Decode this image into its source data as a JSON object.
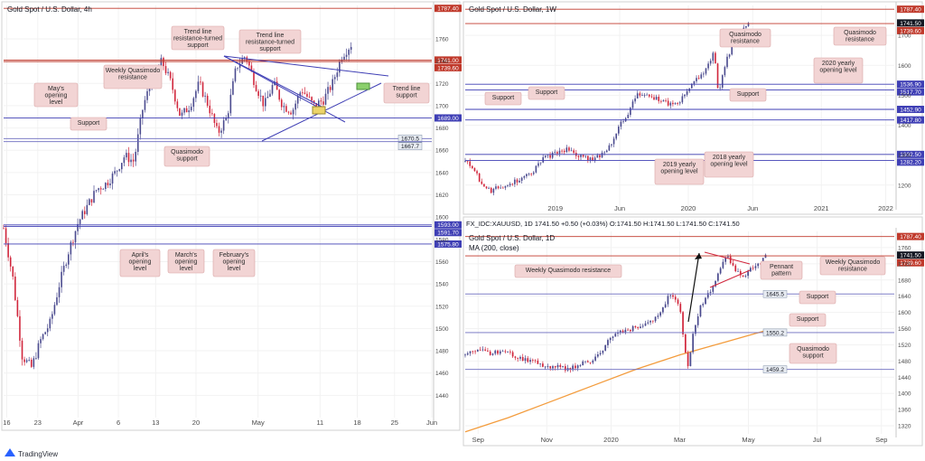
{
  "app": {
    "brand": "TradingView"
  },
  "colors": {
    "up": "#4a4a8e",
    "down": "#d1263c",
    "ma": "#f39c3d",
    "support": "#3f3fb5",
    "resistance": "#c0392b",
    "note_fill": "#f2d4d4",
    "note_stroke": "#d9a3a3",
    "grid": "#f2f2f2",
    "axis": "#c9c9c9",
    "green_box": "#8bd06c",
    "yellow_box": "#ecd46a"
  },
  "chart_data": [
    {
      "id": "tl",
      "type": "candlestick",
      "title": "Gold Spot / U.S. Dollar, 4h",
      "ylim": [
        1420,
        1790
      ],
      "y_ticks": [
        1440,
        1460,
        1480,
        1500,
        1520,
        1540,
        1560,
        1580,
        1600,
        1620,
        1640,
        1660,
        1680,
        1700,
        1720,
        1740,
        1760
      ],
      "x_ticks": [
        {
          "label": "16",
          "t": 0.01
        },
        {
          "label": "23",
          "t": 0.11
        },
        {
          "label": "Apr",
          "t": 0.24
        },
        {
          "label": "6",
          "t": 0.37
        },
        {
          "label": "13",
          "t": 0.49
        },
        {
          "label": "20",
          "t": 0.62
        },
        {
          "label": "May",
          "t": 0.82
        },
        {
          "label": "11",
          "t": 1.02
        },
        {
          "label": "18",
          "t": 1.14
        },
        {
          "label": "25",
          "t": 1.26
        },
        {
          "label": "Jun",
          "t": 1.38
        }
      ],
      "price_path": [
        [
          0,
          1590
        ],
        [
          0.03,
          1545
        ],
        [
          0.06,
          1475
        ],
        [
          0.09,
          1465
        ],
        [
          0.12,
          1490
        ],
        [
          0.15,
          1505
        ],
        [
          0.18,
          1540
        ],
        [
          0.21,
          1570
        ],
        [
          0.24,
          1595
        ],
        [
          0.27,
          1610
        ],
        [
          0.3,
          1625
        ],
        [
          0.33,
          1630
        ],
        [
          0.36,
          1640
        ],
        [
          0.39,
          1655
        ],
        [
          0.42,
          1650
        ],
        [
          0.45,
          1700
        ],
        [
          0.48,
          1725
        ],
        [
          0.51,
          1740
        ],
        [
          0.54,
          1720
        ],
        [
          0.57,
          1690
        ],
        [
          0.6,
          1700
        ],
        [
          0.63,
          1720
        ],
        [
          0.66,
          1700
        ],
        [
          0.69,
          1675
        ],
        [
          0.72,
          1690
        ],
        [
          0.75,
          1735
        ],
        [
          0.78,
          1745
        ],
        [
          0.81,
          1720
        ],
        [
          0.84,
          1700
        ],
        [
          0.87,
          1720
        ],
        [
          0.9,
          1700
        ],
        [
          0.93,
          1695
        ],
        [
          0.96,
          1715
        ],
        [
          1.0,
          1700
        ],
        [
          1.03,
          1705
        ],
        [
          1.06,
          1720
        ],
        [
          1.09,
          1745
        ],
        [
          1.12,
          1755
        ]
      ],
      "levels": [
        {
          "value": 1787.4,
          "label": "1787.40",
          "kind": "resistance"
        },
        {
          "value": 1741.0,
          "label": "1741.00",
          "kind": "resistance"
        },
        {
          "value": 1739.6,
          "label": "1739.60",
          "kind": "resistance"
        },
        {
          "value": 1689.0,
          "label": "1689.00",
          "kind": "support"
        },
        {
          "value": 1670.5,
          "label": "1670.5",
          "kind": "neutral"
        },
        {
          "value": 1667.7,
          "label": "1667.7",
          "kind": "neutral"
        },
        {
          "value": 1593.0,
          "label": "1593.00",
          "kind": "support"
        },
        {
          "value": 1591.7,
          "label": "1591.70",
          "kind": "support"
        },
        {
          "value": 1575.8,
          "label": "1575.80",
          "kind": "support"
        }
      ],
      "annotations": [
        "Trend line resistance-turned support",
        "Trend line resistance-turned support",
        "Weekly Quasimodo resistance",
        "May's opening level",
        "Trend line support",
        "Support",
        "Quasimodo support",
        "April's opening level",
        "March's opening level",
        "February's opening level"
      ]
    },
    {
      "id": "tr",
      "type": "candlestick",
      "title": "Gold Spot / U.S. Dollar, 1W",
      "ylim": [
        1130,
        1800
      ],
      "y_ticks": [
        1200,
        1300,
        1400,
        1500,
        1600,
        1700
      ],
      "x_ticks": [
        {
          "label": "2019",
          "t": 0.21
        },
        {
          "label": "Jun",
          "t": 0.36
        },
        {
          "label": "2020",
          "t": 0.52
        },
        {
          "label": "Jun",
          "t": 0.67
        },
        {
          "label": "2021",
          "t": 0.83
        },
        {
          "label": "2022",
          "t": 0.98
        }
      ],
      "price_path": [
        [
          0,
          1280
        ],
        [
          0.02,
          1250
        ],
        [
          0.04,
          1200
        ],
        [
          0.06,
          1180
        ],
        [
          0.08,
          1195
        ],
        [
          0.1,
          1205
        ],
        [
          0.12,
          1215
        ],
        [
          0.14,
          1230
        ],
        [
          0.16,
          1250
        ],
        [
          0.18,
          1285
        ],
        [
          0.2,
          1300
        ],
        [
          0.22,
          1310
        ],
        [
          0.24,
          1320
        ],
        [
          0.26,
          1300
        ],
        [
          0.28,
          1290
        ],
        [
          0.3,
          1285
        ],
        [
          0.32,
          1305
        ],
        [
          0.34,
          1340
        ],
        [
          0.36,
          1400
        ],
        [
          0.38,
          1440
        ],
        [
          0.4,
          1500
        ],
        [
          0.42,
          1510
        ],
        [
          0.44,
          1490
        ],
        [
          0.46,
          1480
        ],
        [
          0.48,
          1470
        ],
        [
          0.5,
          1480
        ],
        [
          0.52,
          1520
        ],
        [
          0.54,
          1560
        ],
        [
          0.56,
          1580
        ],
        [
          0.58,
          1650
        ],
        [
          0.59,
          1510
        ],
        [
          0.61,
          1620
        ],
        [
          0.63,
          1690
        ],
        [
          0.65,
          1720
        ],
        [
          0.66,
          1745
        ]
      ],
      "levels": [
        {
          "value": 1787.4,
          "label": "1787.40",
          "kind": "resistance"
        },
        {
          "value": 1741.5,
          "label": "1741.50",
          "kind": "current"
        },
        {
          "value": 1739.6,
          "label": "1739.60",
          "kind": "resistance"
        },
        {
          "value": 1536.9,
          "label": "1536.90",
          "kind": "support"
        },
        {
          "value": 1517.7,
          "label": "1517.70",
          "kind": "support"
        },
        {
          "value": 1452.9,
          "label": "1452.90",
          "kind": "support"
        },
        {
          "value": 1417.8,
          "label": "1417.80",
          "kind": "support"
        },
        {
          "value": 1302.5,
          "label": "1302.50",
          "kind": "support"
        },
        {
          "value": 1282.2,
          "label": "1282.20",
          "kind": "support"
        }
      ],
      "annotations": [
        "Quasimodo resistance",
        "Quasimodo resistance",
        "2020 yearly opening level",
        "Support",
        "Support",
        "Support",
        "2019 yearly opening level",
        "2018 yearly opening level"
      ]
    },
    {
      "id": "br",
      "type": "candlestick",
      "title": "Gold Spot / U.S. Dollar, 1D",
      "symbol_header": "FX_IDC:XAUUSD, 1D  1741.50  +0.50 (+0.03%)  O:1741.50  H:1741.50  L:1741.50  C:1741.50",
      "indicator": "MA (200, close)",
      "ylim": [
        1300,
        1800
      ],
      "y_ticks": [
        1320,
        1360,
        1400,
        1440,
        1480,
        1520,
        1560,
        1600,
        1640,
        1680,
        1720,
        1760
      ],
      "x_ticks": [
        {
          "label": "Sep",
          "t": 0.03
        },
        {
          "label": "Nov",
          "t": 0.19
        },
        {
          "label": "2020",
          "t": 0.34
        },
        {
          "label": "Mar",
          "t": 0.5
        },
        {
          "label": "May",
          "t": 0.66
        },
        {
          "label": "Jul",
          "t": 0.82
        },
        {
          "label": "Sep",
          "t": 0.97
        }
      ],
      "price_path": [
        [
          0,
          1495
        ],
        [
          0.03,
          1505
        ],
        [
          0.06,
          1500
        ],
        [
          0.09,
          1505
        ],
        [
          0.12,
          1490
        ],
        [
          0.15,
          1480
        ],
        [
          0.18,
          1470
        ],
        [
          0.21,
          1465
        ],
        [
          0.24,
          1460
        ],
        [
          0.27,
          1475
        ],
        [
          0.3,
          1480
        ],
        [
          0.33,
          1525
        ],
        [
          0.36,
          1555
        ],
        [
          0.39,
          1560
        ],
        [
          0.42,
          1575
        ],
        [
          0.45,
          1590
        ],
        [
          0.48,
          1650
        ],
        [
          0.5,
          1610
        ],
        [
          0.51,
          1520
        ],
        [
          0.52,
          1460
        ],
        [
          0.53,
          1540
        ],
        [
          0.55,
          1620
        ],
        [
          0.57,
          1650
        ],
        [
          0.59,
          1700
        ],
        [
          0.61,
          1740
        ],
        [
          0.63,
          1705
        ],
        [
          0.65,
          1690
        ],
        [
          0.67,
          1710
        ],
        [
          0.69,
          1725
        ],
        [
          0.7,
          1742
        ]
      ],
      "ma200_path": [
        [
          0,
          1305
        ],
        [
          0.1,
          1340
        ],
        [
          0.2,
          1380
        ],
        [
          0.3,
          1420
        ],
        [
          0.4,
          1460
        ],
        [
          0.5,
          1495
        ],
        [
          0.6,
          1525
        ],
        [
          0.7,
          1555
        ]
      ],
      "levels": [
        {
          "value": 1787.4,
          "label": "1787.40",
          "kind": "resistance"
        },
        {
          "value": 1741.5,
          "label": "1741.50",
          "kind": "current"
        },
        {
          "value": 1739.6,
          "label": "1739.60",
          "kind": "resistance"
        },
        {
          "value": 1645.5,
          "label": "1645.5",
          "kind": "neutral"
        },
        {
          "value": 1550.2,
          "label": "1550.2",
          "kind": "neutral"
        },
        {
          "value": 1459.2,
          "label": "1459.2",
          "kind": "neutral"
        }
      ],
      "annotations": [
        "Weekly Quasimodo resistance",
        "Weekly Quasimodo resistance",
        "Pennant pattern",
        "Support",
        "Support",
        "Quasimodo support"
      ]
    }
  ]
}
